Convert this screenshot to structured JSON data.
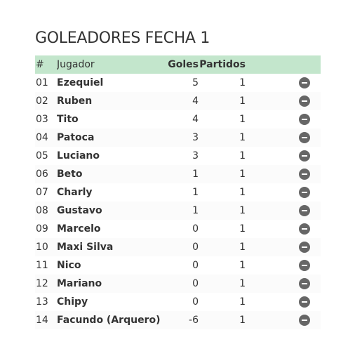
{
  "title": "GOLEADORES FECHA 1",
  "table": {
    "headers": {
      "num": "#",
      "player": "Jugador",
      "goals": "Goles",
      "matches": "Partidos"
    },
    "rows": [
      {
        "num": "01",
        "player": "Ezequiel",
        "goals": "5",
        "matches": "1"
      },
      {
        "num": "02",
        "player": "Ruben",
        "goals": "4",
        "matches": "1"
      },
      {
        "num": "03",
        "player": "Tito",
        "goals": "4",
        "matches": "1"
      },
      {
        "num": "04",
        "player": "Patoca",
        "goals": "3",
        "matches": "1"
      },
      {
        "num": "05",
        "player": "Luciano",
        "goals": "3",
        "matches": "1"
      },
      {
        "num": "06",
        "player": "Beto",
        "goals": "1",
        "matches": "1"
      },
      {
        "num": "07",
        "player": "Charly",
        "goals": "1",
        "matches": "1"
      },
      {
        "num": "08",
        "player": "Gustavo",
        "goals": "1",
        "matches": "1"
      },
      {
        "num": "09",
        "player": "Marcelo",
        "goals": "0",
        "matches": "1"
      },
      {
        "num": "10",
        "player": "Maxi Silva",
        "goals": "0",
        "matches": "1"
      },
      {
        "num": "11",
        "player": "Nico",
        "goals": "0",
        "matches": "1"
      },
      {
        "num": "12",
        "player": "Mariano",
        "goals": "0",
        "matches": "1"
      },
      {
        "num": "13",
        "player": "Chipy",
        "goals": "0",
        "matches": "1"
      },
      {
        "num": "14",
        "player": "Facundo (Arquero)",
        "goals": "-6",
        "matches": "1"
      }
    ]
  },
  "colors": {
    "header_bg": "#c3e6cc",
    "text": "#333333",
    "remove_icon": "#666666"
  },
  "icons": {
    "row_action": "remove-icon"
  }
}
